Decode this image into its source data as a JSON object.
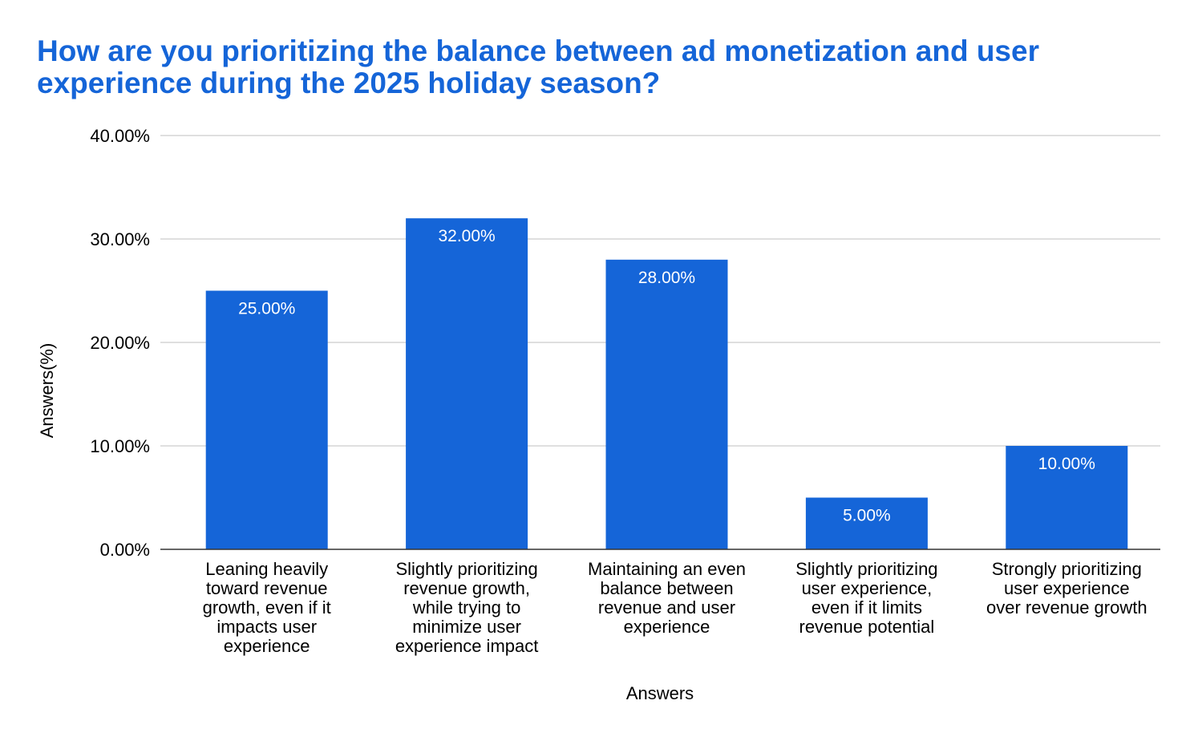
{
  "chart_data": {
    "type": "bar",
    "title": "How are you prioritizing the balance between ad monetization and user experience during the 2025 holiday season?",
    "xlabel": "Answers",
    "ylabel": "Answers(%)",
    "ylim": [
      0,
      40
    ],
    "yticks": [
      0,
      10,
      20,
      30,
      40
    ],
    "ytick_labels": [
      "0.00%",
      "10.00%",
      "20.00%",
      "30.00%",
      "40.00%"
    ],
    "grid": true,
    "legend": "none",
    "bar_color": "#1565D8",
    "title_color": "#1565D8",
    "categories": [
      "Leaning heavily toward revenue growth, even if it impacts user experience",
      "Slightly prioritizing revenue growth, while trying to minimize user experience impact",
      "Maintaining an even balance between revenue and user experience",
      "Slightly prioritizing user experience, even if it limits revenue potential",
      "Strongly prioritizing user experience over revenue growth"
    ],
    "category_label_lines": [
      [
        "Leaning heavily",
        "toward revenue",
        "growth, even if it",
        "impacts user",
        "experience"
      ],
      [
        "Slightly prioritizing",
        "revenue growth,",
        "while trying to",
        "minimize user",
        "experience impact"
      ],
      [
        "Maintaining an even",
        "balance between",
        "revenue and user",
        "experience"
      ],
      [
        "Slightly prioritizing",
        "user experience,",
        "even if it limits",
        "revenue potential"
      ],
      [
        "Strongly prioritizing",
        "user experience",
        "over revenue growth"
      ]
    ],
    "values": [
      25,
      32,
      28,
      5,
      10
    ],
    "data_labels": [
      "25.00%",
      "32.00%",
      "28.00%",
      "5.00%",
      "10.00%"
    ]
  }
}
